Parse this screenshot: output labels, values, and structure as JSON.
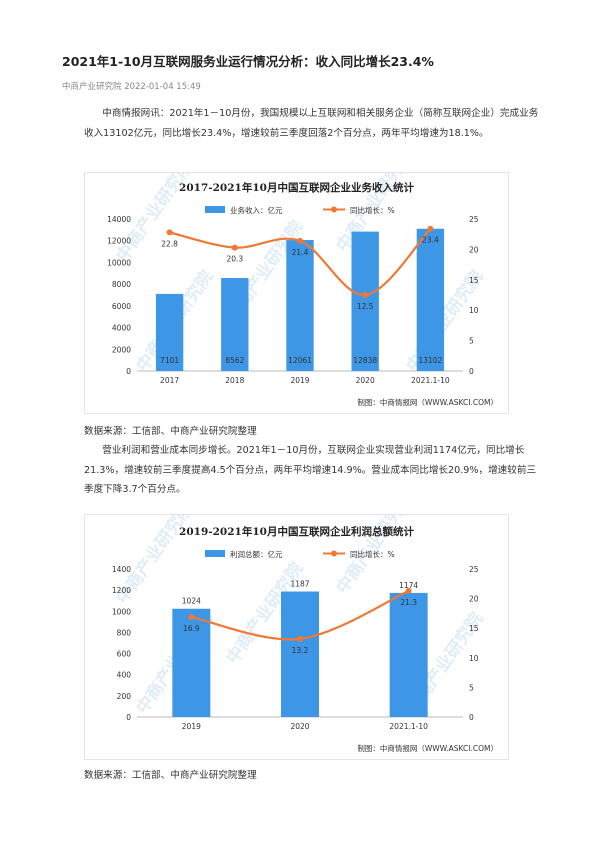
{
  "article": {
    "title": "2021年1-10月互联网服务业运行情况分析：收入同比增长23.4%",
    "meta": "中商产业研究院 2022-01-04 15:49",
    "para1": "中商情报网讯：2021年1－10月份，我国规模以上互联网和相关服务企业（简称互联网企业）完成业务收入13102亿元，同比增长23.4%，增速较前三季度回落2个百分点，两年平均增速为18.1%。",
    "source1": "数据来源：工信部、中商产业研究院整理",
    "para2": "营业利润和营业成本同步增长。2021年1－10月份，互联网企业实现营业利润1174亿元，同比增长21.3%，增速较前三季度提高4.5个百分点，两年平均增速14.9%。营业成本同比增长20.9%，增速较前三季度下降3.7个百分点。",
    "source2": "数据来源：工信部、中商产业研究院整理"
  },
  "colors": {
    "bar": "#3e97e6",
    "line": "#f07835",
    "watermark": "#d9e8f5"
  },
  "chart_data": [
    {
      "type": "bar",
      "title": "2017-2021年10月中国互联网企业业务收入统计",
      "categories": [
        "2017",
        "2018",
        "2019",
        "2020",
        "2021.1-10"
      ],
      "series": [
        {
          "name": "业务收入：亿元",
          "type": "bar",
          "axis": "left",
          "values": [
            7101,
            8562,
            12061,
            12838,
            13102
          ],
          "labels": [
            "7101",
            "8562",
            "12061",
            "12838",
            "13102"
          ]
        },
        {
          "name": "同比增长：%",
          "type": "line",
          "axis": "right",
          "values": [
            22.8,
            20.3,
            21.4,
            12.5,
            23.4
          ],
          "labels": [
            "22.8",
            "20.3",
            "21.4",
            "12.5",
            "23.4"
          ]
        }
      ],
      "ylim_left": [
        0,
        14000
      ],
      "yticks_left": [
        "0",
        "2000",
        "4000",
        "6000",
        "8000",
        "10000",
        "12000",
        "14000"
      ],
      "ylim_right": [
        0,
        25
      ],
      "yticks_right": [
        "0",
        "5",
        "10",
        "15",
        "20",
        "25"
      ],
      "grid": false,
      "legend": "top",
      "credit": "制图：中商情报网（WWW.ASKCI.COM）",
      "watermark": "中商产业研究院"
    },
    {
      "type": "bar",
      "title": "2019-2021年10月中国互联网企业利润总额统计",
      "categories": [
        "2019",
        "2020",
        "2021.1-10"
      ],
      "series": [
        {
          "name": "利润总额：亿元",
          "type": "bar",
          "axis": "left",
          "values": [
            1024,
            1187,
            1174
          ],
          "labels": [
            "1024",
            "1187",
            "1174"
          ]
        },
        {
          "name": "同比增长：%",
          "type": "line",
          "axis": "right",
          "values": [
            16.9,
            13.2,
            21.3
          ],
          "labels": [
            "16.9",
            "13.2",
            "21.3"
          ]
        }
      ],
      "ylim_left": [
        0,
        1400
      ],
      "yticks_left": [
        "0",
        "200",
        "400",
        "600",
        "800",
        "1000",
        "1200",
        "1400"
      ],
      "ylim_right": [
        0,
        25
      ],
      "yticks_right": [
        "0",
        "5",
        "10",
        "15",
        "20",
        "25"
      ],
      "grid": false,
      "legend": "top",
      "credit": "制图：中商情报网（WWW.ASKCI.COM）",
      "watermark": "中商产业研究院"
    }
  ]
}
